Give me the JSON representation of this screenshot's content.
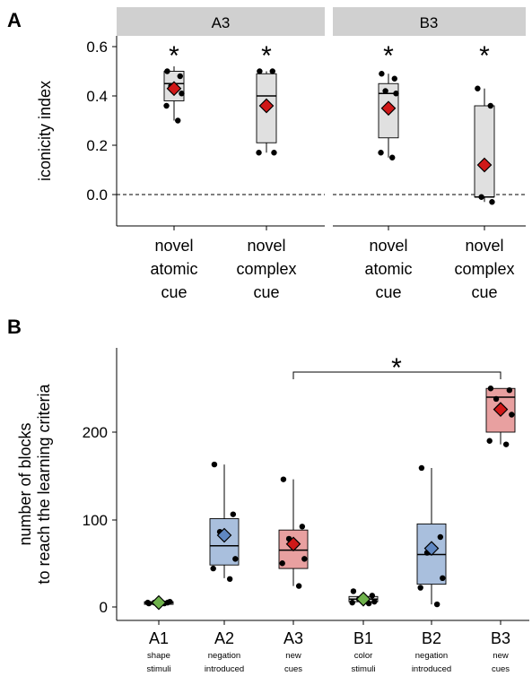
{
  "panel_a": {
    "letter": "A",
    "facets": [
      "A3",
      "B3"
    ],
    "ylabel": "iconicity index",
    "yticks": [
      "0.6",
      "0.4",
      "0.2",
      "0.0"
    ],
    "xcats": [
      [
        "novel",
        "atomic",
        "cue"
      ],
      [
        "novel",
        "complex",
        "cue"
      ],
      [
        "novel",
        "atomic",
        "cue"
      ],
      [
        "novel",
        "complex",
        "cue"
      ]
    ],
    "star": "*"
  },
  "panel_b": {
    "letter": "B",
    "ylabel_line1": "number of blocks",
    "ylabel_line2": "to reach the learning criteria",
    "yticks": [
      "200",
      "100",
      "0"
    ],
    "categories": [
      "A1",
      "A2",
      "A3",
      "B1",
      "B2",
      "B3"
    ],
    "sublabels": [
      [
        "shape",
        "stimuli"
      ],
      [
        "negation",
        "introduced"
      ],
      [
        "new",
        "cues"
      ],
      [
        "color",
        "stimuli"
      ],
      [
        "negation",
        "introduced"
      ],
      [
        "new",
        "cues"
      ]
    ],
    "star": "*"
  },
  "colors": {
    "strip_bg": "#d0d0d0",
    "box_gray": "#e0e0e0",
    "box_blue": "#a9bfdd",
    "box_red": "#e8a0a0",
    "mean_red": "#d01818",
    "mean_blue": "#5f87c2",
    "mean_green": "#6fb24c",
    "points": "#000000"
  },
  "chart_data": [
    {
      "type": "box",
      "facets": [
        "A3",
        "B3"
      ],
      "categories": [
        "novel atomic cue",
        "novel complex cue"
      ],
      "ylabel": "iconicity index",
      "ylim": [
        -0.08,
        0.64
      ],
      "reference_line": 0.0,
      "boxes": [
        {
          "facet": "A3",
          "category": "novel atomic cue",
          "q1": 0.38,
          "median": 0.45,
          "q3": 0.5,
          "whisker_low": 0.3,
          "whisker_high": 0.52,
          "mean": 0.43,
          "points": [
            0.5,
            0.48,
            0.44,
            0.41,
            0.36,
            0.3
          ],
          "significant": true
        },
        {
          "facet": "A3",
          "category": "novel complex cue",
          "q1": 0.21,
          "median": 0.4,
          "q3": 0.49,
          "whisker_low": 0.17,
          "whisker_high": 0.5,
          "mean": 0.36,
          "points": [
            0.5,
            0.5,
            0.36,
            0.17,
            0.17
          ],
          "significant": true
        },
        {
          "facet": "B3",
          "category": "novel atomic cue",
          "q1": 0.23,
          "median": 0.41,
          "q3": 0.45,
          "whisker_low": 0.15,
          "whisker_high": 0.49,
          "mean": 0.35,
          "points": [
            0.49,
            0.47,
            0.42,
            0.41,
            0.17,
            0.15
          ],
          "significant": true
        },
        {
          "facet": "B3",
          "category": "novel complex cue",
          "q1": -0.01,
          "median": -0.01,
          "q3": 0.36,
          "whisker_low": -0.03,
          "whisker_high": 0.43,
          "mean": 0.12,
          "points": [
            0.43,
            0.36,
            -0.01,
            -0.03
          ],
          "significant": true
        }
      ]
    },
    {
      "type": "box",
      "categories": [
        "A1",
        "A2",
        "A3",
        "B1",
        "B2",
        "B3"
      ],
      "ylabel": "number of blocks to reach the learning criteria",
      "ylim": [
        -10,
        295
      ],
      "boxes": [
        {
          "category": "A1",
          "q1": 3,
          "median": 5,
          "q3": 6,
          "whisker_low": 3,
          "whisker_high": 6,
          "mean": 5,
          "color": "green",
          "points": [
            4,
            5,
            5,
            6,
            5,
            4
          ]
        },
        {
          "category": "A2",
          "q1": 48,
          "median": 70,
          "q3": 101,
          "whisker_low": 33,
          "whisker_high": 163,
          "mean": 82,
          "color": "blue",
          "points": [
            163,
            106,
            86,
            55,
            44,
            32
          ]
        },
        {
          "category": "A3",
          "q1": 44,
          "median": 65,
          "q3": 88,
          "whisker_low": 24,
          "whisker_high": 146,
          "mean": 72,
          "color": "red",
          "points": [
            146,
            92,
            78,
            55,
            50,
            24
          ]
        },
        {
          "category": "B1",
          "q1": 6,
          "median": 9,
          "q3": 12,
          "whisker_low": 4,
          "whisker_high": 14,
          "mean": 9,
          "color": "green",
          "points": [
            18,
            13,
            9,
            6,
            5,
            4
          ]
        },
        {
          "category": "B2",
          "q1": 26,
          "median": 60,
          "q3": 95,
          "whisker_low": 3,
          "whisker_high": 159,
          "mean": 67,
          "color": "blue",
          "points": [
            159,
            80,
            62,
            33,
            22,
            3
          ]
        },
        {
          "category": "B3",
          "q1": 200,
          "median": 240,
          "q3": 250,
          "whisker_low": 186,
          "whisker_high": 250,
          "mean": 226,
          "color": "red",
          "points": [
            250,
            248,
            238,
            220,
            190,
            186
          ]
        }
      ],
      "significance_bracket": {
        "from": "A3",
        "to": "B3",
        "label": "*"
      }
    }
  ]
}
